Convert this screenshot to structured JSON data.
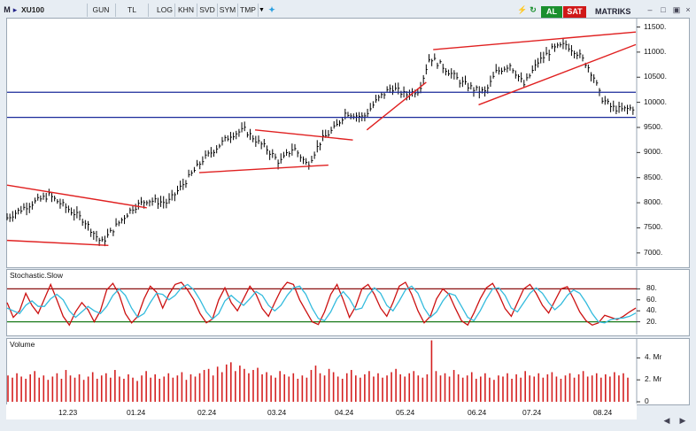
{
  "toolbar": {
    "menu": "M",
    "symbol": "XU100",
    "buttons": [
      "GUN",
      "TL",
      "LOG",
      "KHN",
      "SVD",
      "SYM",
      "TMP"
    ],
    "buy_label": "AL",
    "sell_label": "SAT",
    "brand": "MATRIKS"
  },
  "panels": {
    "stochastic_label": "Stochastic.Slow",
    "volume_label": "Volume"
  },
  "chart_data": [
    {
      "type": "line",
      "title": "XU100",
      "period": "GUN",
      "x_ticks": [
        "12.23",
        "01.24",
        "02.24",
        "03.24",
        "04.24",
        "05.24",
        "06.24",
        "07.24",
        "08.24"
      ],
      "ylim": [
        6750,
        11650
      ],
      "y_ticks": [
        "11500.",
        "11000.",
        "10500.",
        "10000.",
        "9500.",
        "9000.",
        "8500.",
        "8000.",
        "7500.",
        "7000."
      ],
      "close_path": [
        [
          0,
          7700
        ],
        [
          6,
          7950
        ],
        [
          12,
          8150
        ],
        [
          18,
          7850
        ],
        [
          22,
          7650
        ],
        [
          27,
          7200
        ],
        [
          32,
          7600
        ],
        [
          36,
          7900
        ],
        [
          40,
          8050
        ],
        [
          46,
          8000
        ],
        [
          52,
          8500
        ],
        [
          56,
          8850
        ],
        [
          60,
          9100
        ],
        [
          64,
          9350
        ],
        [
          68,
          9450
        ],
        [
          72,
          9200
        ],
        [
          74,
          9100
        ],
        [
          78,
          8800
        ],
        [
          82,
          9100
        ],
        [
          86,
          8750
        ],
        [
          90,
          9250
        ],
        [
          94,
          9500
        ],
        [
          97,
          9800
        ],
        [
          102,
          9700
        ],
        [
          106,
          10050
        ],
        [
          110,
          10300
        ],
        [
          114,
          10150
        ],
        [
          118,
          10250
        ],
        [
          121,
          10900
        ],
        [
          125,
          10700
        ],
        [
          130,
          10400
        ],
        [
          134,
          10250
        ],
        [
          137,
          10200
        ],
        [
          140,
          10600
        ],
        [
          144,
          10750
        ],
        [
          148,
          10350
        ],
        [
          152,
          10800
        ],
        [
          156,
          11050
        ],
        [
          160,
          11150
        ],
        [
          163,
          11000
        ],
        [
          166,
          10750
        ],
        [
          168,
          10500
        ],
        [
          170,
          10100
        ],
        [
          173,
          9900
        ],
        [
          176,
          9850
        ],
        [
          180,
          9900
        ]
      ],
      "horizontal_lines": [
        10200,
        9700
      ],
      "trend_lines": [
        [
          [
            0,
            8350
          ],
          [
            40,
            7900
          ]
        ],
        [
          [
            0,
            7250
          ],
          [
            29,
            7150
          ]
        ],
        [
          [
            55,
            8600
          ],
          [
            92,
            8750
          ]
        ],
        [
          [
            71,
            9450
          ],
          [
            99,
            9250
          ]
        ],
        [
          [
            103,
            9450
          ],
          [
            120,
            10400
          ]
        ],
        [
          [
            122,
            11050
          ],
          [
            180,
            11400
          ]
        ],
        [
          [
            135,
            9950
          ],
          [
            180,
            11150
          ]
        ]
      ]
    },
    {
      "type": "line",
      "title": "Stochastic.Slow",
      "ylim": [
        0,
        100
      ],
      "y_ticks": [
        "80.",
        "60.",
        "40.",
        "20."
      ],
      "levels": [
        20,
        80
      ],
      "series": [
        {
          "color": "#cc1111",
          "values": [
            55,
            28,
            40,
            72,
            50,
            35,
            62,
            88,
            60,
            30,
            14,
            38,
            55,
            42,
            20,
            40,
            78,
            90,
            70,
            35,
            18,
            30,
            62,
            85,
            74,
            45,
            70,
            88,
            92,
            78,
            60,
            35,
            18,
            25,
            60,
            82,
            55,
            40,
            62,
            85,
            70,
            44,
            30,
            55,
            78,
            92,
            88,
            60,
            40,
            20,
            15,
            38,
            70,
            88,
            60,
            28,
            48,
            80,
            88,
            70,
            45,
            30,
            55,
            85,
            92,
            70,
            40,
            18,
            30,
            62,
            80,
            70,
            45,
            22,
            14,
            36,
            62,
            82,
            90,
            70,
            44,
            30,
            55,
            80,
            88,
            72,
            50,
            36,
            58,
            80,
            84,
            62,
            38,
            22,
            14,
            18,
            32,
            28,
            24,
            30,
            38,
            45
          ]
        },
        {
          "color": "#33bbdd",
          "values": [
            45,
            40,
            35,
            50,
            58,
            48,
            48,
            62,
            70,
            60,
            40,
            28,
            38,
            48,
            40,
            35,
            48,
            68,
            80,
            68,
            45,
            28,
            35,
            55,
            72,
            70,
            60,
            68,
            82,
            88,
            78,
            60,
            38,
            25,
            35,
            58,
            68,
            58,
            50,
            62,
            75,
            68,
            50,
            40,
            50,
            68,
            82,
            85,
            70,
            45,
            26,
            22,
            38,
            62,
            75,
            62,
            42,
            45,
            68,
            82,
            72,
            50,
            40,
            58,
            78,
            85,
            72,
            45,
            28,
            38,
            58,
            72,
            68,
            48,
            28,
            22,
            40,
            62,
            80,
            82,
            68,
            45,
            38,
            55,
            72,
            82,
            72,
            55,
            42,
            52,
            68,
            78,
            72,
            55,
            35,
            20,
            18,
            24,
            26,
            27,
            30,
            36
          ]
        }
      ]
    },
    {
      "type": "bar",
      "title": "Volume",
      "ylim": [
        0,
        5000000
      ],
      "y_ticks": [
        "4. Mr",
        "2. Mr",
        "0"
      ],
      "values": [
        2.4,
        2.2,
        2.6,
        2.3,
        2.1,
        2.5,
        2.8,
        2.2,
        2.4,
        2.0,
        2.3,
        2.6,
        2.1,
        2.9,
        2.4,
        2.2,
        2.5,
        2.0,
        2.3,
        2.7,
        2.1,
        2.4,
        2.6,
        2.2,
        2.9,
        2.3,
        2.1,
        2.5,
        2.2,
        1.9,
        2.4,
        2.8,
        2.2,
        2.5,
        2.1,
        2.3,
        2.6,
        2.2,
        2.4,
        2.7,
        2.0,
        2.5,
        2.3,
        2.6,
        2.9,
        3.0,
        2.4,
        3.2,
        2.7,
        3.4,
        3.6,
        2.8,
        3.3,
        3.0,
        2.6,
        2.9,
        3.1,
        2.5,
        2.7,
        2.4,
        2.2,
        2.8,
        2.5,
        2.3,
        2.6,
        2.1,
        2.4,
        2.2,
        2.9,
        3.3,
        2.6,
        2.4,
        3.0,
        2.7,
        2.3,
        2.1,
        2.6,
        2.9,
        2.4,
        2.2,
        2.5,
        2.8,
        2.3,
        2.6,
        2.2,
        2.4,
        2.7,
        3.0,
        2.5,
        2.3,
        2.6,
        2.8,
        2.4,
        2.2,
        2.5,
        5.6,
        2.8,
        2.4,
        2.6,
        2.3,
        2.9,
        2.5,
        2.2,
        2.4,
        2.7,
        2.1,
        2.3,
        2.6,
        2.2,
        2.0,
        2.4,
        2.3,
        2.6,
        2.1,
        2.5,
        2.2,
        2.8,
        2.4,
        2.3,
        2.6,
        2.2,
        2.5,
        2.7,
        2.3,
        2.1,
        2.4,
        2.6,
        2.2,
        2.5,
        2.8,
        2.3,
        2.4,
        2.6,
        2.2,
        2.5,
        2.3,
        2.7,
        2.4,
        2.6,
        2.2
      ]
    }
  ]
}
